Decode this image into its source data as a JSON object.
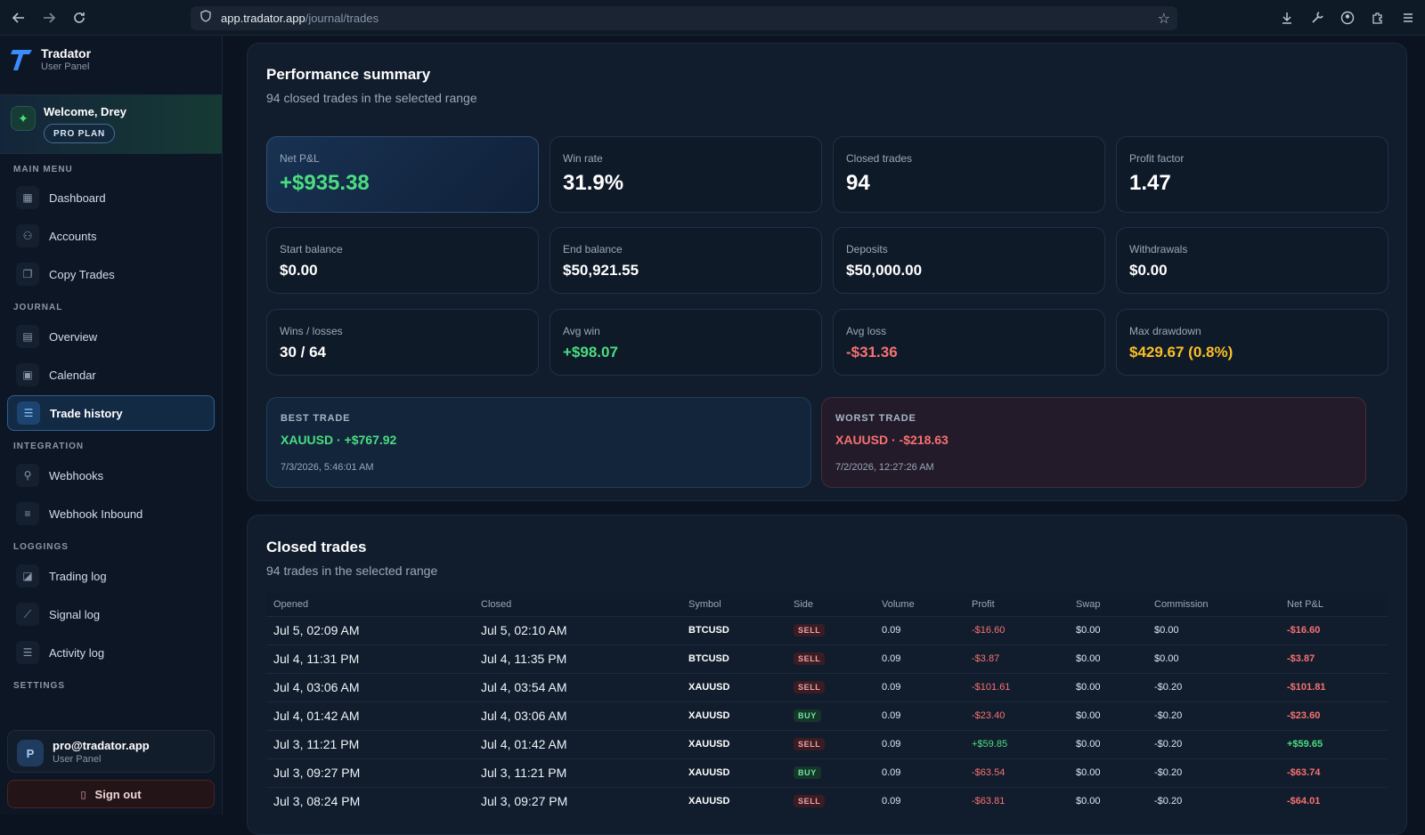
{
  "browser": {
    "url_host": "app.tradator.app",
    "url_path": "/journal/trades"
  },
  "brand": {
    "name": "Tradator",
    "subtitle": "User Panel"
  },
  "welcome": {
    "greeting": "Welcome, Drey",
    "plan": "PRO PLAN"
  },
  "sidebar": {
    "sections": {
      "main_menu": "MAIN MENU",
      "journal": "JOURNAL",
      "integration": "INTEGRATION",
      "loggings": "LOGGINGS",
      "settings": "SETTINGS"
    },
    "items": {
      "dashboard": "Dashboard",
      "accounts": "Accounts",
      "copy_trades": "Copy Trades",
      "overview": "Overview",
      "calendar": "Calendar",
      "trade_history": "Trade history",
      "webhooks": "Webhooks",
      "webhook_inbound": "Webhook Inbound",
      "trading_log": "Trading log",
      "signal_log": "Signal log",
      "activity_log": "Activity log"
    },
    "active": "trade_history"
  },
  "user": {
    "email": "pro@tradator.app",
    "role": "User Panel",
    "initial": "P"
  },
  "signout": "Sign out",
  "summary": {
    "title": "Performance summary",
    "subtitle": "94 closed trades in the selected range",
    "net_pnl_label": "Net P&L",
    "net_pnl": "+$935.38",
    "win_rate_label": "Win rate",
    "win_rate": "31.9%",
    "closed_trades_label": "Closed trades",
    "closed_trades": "94",
    "profit_factor_label": "Profit factor",
    "profit_factor": "1.47",
    "start_balance_label": "Start balance",
    "start_balance": "$0.00",
    "end_balance_label": "End balance",
    "end_balance": "$50,921.55",
    "deposits_label": "Deposits",
    "deposits": "$50,000.00",
    "withdrawals_label": "Withdrawals",
    "withdrawals": "$0.00",
    "wins_losses_label": "Wins / losses",
    "wins_losses": "30 / 64",
    "avg_win_label": "Avg win",
    "avg_win": "+$98.07",
    "avg_loss_label": "Avg loss",
    "avg_loss": "-$31.36",
    "max_drawdown_label": "Max drawdown",
    "max_drawdown": "$429.67 (0.8%)",
    "best_label": "BEST TRADE",
    "best_value": "XAUUSD · +$767.92",
    "best_date": "7/3/2026, 5:46:01 AM",
    "worst_label": "WORST TRADE",
    "worst_value": "XAUUSD · -$218.63",
    "worst_date": "7/2/2026, 12:27:26 AM"
  },
  "trades": {
    "title": "Closed trades",
    "subtitle": "94 trades in the selected range",
    "columns": [
      "Opened",
      "Closed",
      "Symbol",
      "Side",
      "Volume",
      "Profit",
      "Swap",
      "Commission",
      "Net P&L"
    ],
    "rows": [
      {
        "opened": "Jul 5, 02:09 AM",
        "closed": "Jul 5, 02:10 AM",
        "symbol": "BTCUSD",
        "side": "SELL",
        "volume": "0.09",
        "profit": "-$16.60",
        "swap": "$0.00",
        "commission": "$0.00",
        "net": "-$16.60"
      },
      {
        "opened": "Jul 4, 11:31 PM",
        "closed": "Jul 4, 11:35 PM",
        "symbol": "BTCUSD",
        "side": "SELL",
        "volume": "0.09",
        "profit": "-$3.87",
        "swap": "$0.00",
        "commission": "$0.00",
        "net": "-$3.87"
      },
      {
        "opened": "Jul 4, 03:06 AM",
        "closed": "Jul 4, 03:54 AM",
        "symbol": "XAUUSD",
        "side": "SELL",
        "volume": "0.09",
        "profit": "-$101.61",
        "swap": "$0.00",
        "commission": "-$0.20",
        "net": "-$101.81"
      },
      {
        "opened": "Jul 4, 01:42 AM",
        "closed": "Jul 4, 03:06 AM",
        "symbol": "XAUUSD",
        "side": "BUY",
        "volume": "0.09",
        "profit": "-$23.40",
        "swap": "$0.00",
        "commission": "-$0.20",
        "net": "-$23.60"
      },
      {
        "opened": "Jul 3, 11:21 PM",
        "closed": "Jul 4, 01:42 AM",
        "symbol": "XAUUSD",
        "side": "SELL",
        "volume": "0.09",
        "profit": "+$59.85",
        "swap": "$0.00",
        "commission": "-$0.20",
        "net": "+$59.65"
      },
      {
        "opened": "Jul 3, 09:27 PM",
        "closed": "Jul 3, 11:21 PM",
        "symbol": "XAUUSD",
        "side": "BUY",
        "volume": "0.09",
        "profit": "-$63.54",
        "swap": "$0.00",
        "commission": "-$0.20",
        "net": "-$63.74"
      },
      {
        "opened": "Jul 3, 08:24 PM",
        "closed": "Jul 3, 09:27 PM",
        "symbol": "XAUUSD",
        "side": "SELL",
        "volume": "0.09",
        "profit": "-$63.81",
        "swap": "$0.00",
        "commission": "-$0.20",
        "net": "-$64.01"
      }
    ]
  },
  "colors": {
    "positive": "#4ade80",
    "negative": "#f87171",
    "warning": "#fbbf24",
    "accent": "#2e5f92"
  }
}
